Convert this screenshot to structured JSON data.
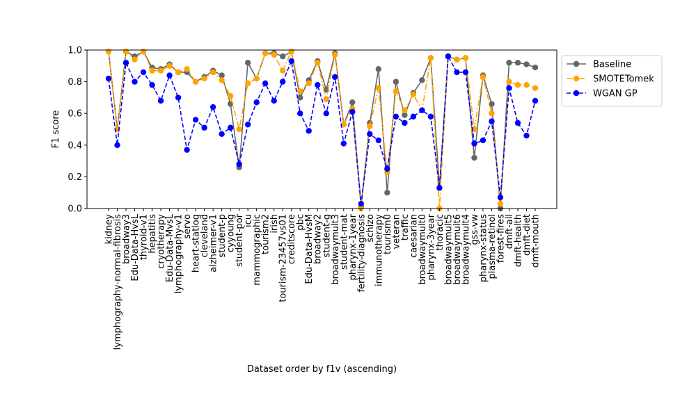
{
  "chart_data": {
    "type": "line",
    "xlabel": "Dataset order by f1v (ascending)",
    "ylabel": "F1 score",
    "ylim": [
      0,
      1
    ],
    "yticks": [
      0.0,
      0.2,
      0.4,
      0.6,
      0.8,
      1.0
    ],
    "ytick_labels": [
      "0.0",
      "0.2",
      "0.4",
      "0.6",
      "0.8",
      "1.0"
    ],
    "grid": false,
    "legend_position": "outside-top-right",
    "categories": [
      "kidney",
      "lymphography-normal-fibrosis",
      "broadway3",
      "Edu-Data-HvsL",
      "thyroid-v1",
      "hepatitis",
      "cryotherapy",
      "Edu-Data-MvsL",
      "lymphography-v1",
      "servo",
      "heart-statlog",
      "cleveland",
      "alzheimer-v1",
      "student-p",
      "cyyoung",
      "student-por",
      "icu",
      "mammographic",
      "tourism2",
      "irish",
      "tourism-23457vs01",
      "creditscore",
      "pbc",
      "Edu-Data-HvsM",
      "broadway2",
      "student-g",
      "broadwaymult3",
      "student-mat",
      "pharynx-1year",
      "fertility-diagnosis",
      "schizo",
      "immunotherapy",
      "tourism0",
      "veteran",
      "traffic",
      "caesarian",
      "broadwaymult0",
      "pharynx-3year",
      "thoracic",
      "broadwaymult5",
      "broadwaymult6",
      "broadwaymult4",
      "gss-vw",
      "pharynx-status",
      "plasma-retinol",
      "forest-fires",
      "dmft-all",
      "dmft-health",
      "dmft-diet",
      "dmft-mouth"
    ],
    "series": [
      {
        "name": "Baseline",
        "color": "#666666",
        "line_style": "solid",
        "marker": "circle",
        "values": [
          0.99,
          0.5,
          0.99,
          0.96,
          0.99,
          0.89,
          0.88,
          0.91,
          0.86,
          0.86,
          0.8,
          0.83,
          0.87,
          0.84,
          0.66,
          0.26,
          0.92,
          0.82,
          0.98,
          0.98,
          0.96,
          0.99,
          0.7,
          0.81,
          0.93,
          0.75,
          0.98,
          0.53,
          0.67,
          0.01,
          0.54,
          0.88,
          0.1,
          0.8,
          0.59,
          0.73,
          0.81,
          0.95,
          0.13,
          0.96,
          0.94,
          0.95,
          0.32,
          0.84,
          0.66,
          0.0,
          0.92,
          0.92,
          0.91,
          0.89
        ]
      },
      {
        "name": "SMOTETomek",
        "color": "#ffa500",
        "line_style": "dashdot",
        "marker": "circle",
        "values": [
          0.99,
          0.5,
          0.99,
          0.94,
          0.99,
          0.87,
          0.87,
          0.9,
          0.86,
          0.88,
          0.8,
          0.82,
          0.86,
          0.81,
          0.71,
          0.5,
          0.79,
          0.82,
          0.98,
          0.97,
          0.87,
          0.99,
          0.74,
          0.79,
          0.92,
          0.69,
          0.97,
          0.53,
          0.63,
          0.0,
          0.52,
          0.76,
          0.23,
          0.74,
          0.62,
          0.72,
          0.62,
          0.95,
          0.0,
          0.96,
          0.94,
          0.95,
          0.5,
          0.83,
          0.6,
          0.03,
          0.8,
          0.78,
          0.78,
          0.76
        ]
      },
      {
        "name": "WGAN GP",
        "color": "#0000ff",
        "line_style": "dashed",
        "marker": "circle",
        "values": [
          0.82,
          0.4,
          0.92,
          0.8,
          0.86,
          0.78,
          0.68,
          0.84,
          0.7,
          0.37,
          0.56,
          0.51,
          0.64,
          0.47,
          0.51,
          0.28,
          0.53,
          0.67,
          0.79,
          0.68,
          0.8,
          0.93,
          0.6,
          0.49,
          0.78,
          0.6,
          0.83,
          0.41,
          0.61,
          0.03,
          0.47,
          0.43,
          0.25,
          0.58,
          0.54,
          0.58,
          0.62,
          0.58,
          0.13,
          0.96,
          0.86,
          0.86,
          0.41,
          0.43,
          0.55,
          0.07,
          0.76,
          0.54,
          0.46,
          0.68
        ]
      }
    ]
  }
}
